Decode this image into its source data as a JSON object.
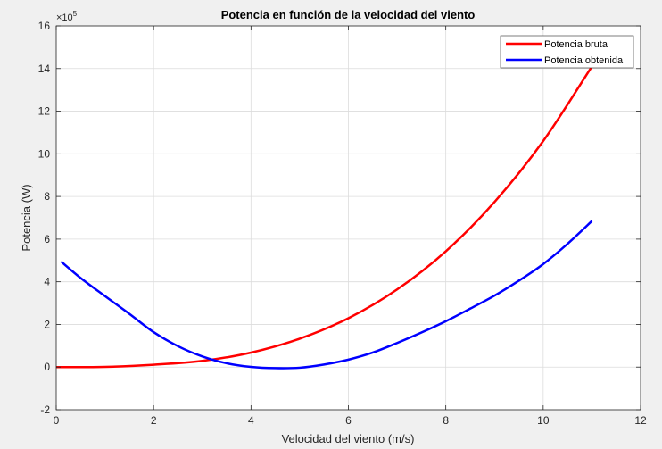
{
  "chart_data": {
    "type": "line",
    "title": "Potencia en función de la velocidad del viento",
    "xlabel": "Velocidad del viento (m/s)",
    "ylabel": "Potencia (W)",
    "y_exponent_label": "×10",
    "y_exponent_power": "5",
    "xlim": [
      0,
      12
    ],
    "ylim": [
      -2,
      16
    ],
    "x_ticks": [
      "0",
      "2",
      "4",
      "6",
      "8",
      "10",
      "12"
    ],
    "y_ticks": [
      "-2",
      "0",
      "2",
      "4",
      "6",
      "8",
      "10",
      "12",
      "14",
      "16"
    ],
    "grid": true,
    "legend_position": "top-right",
    "series": [
      {
        "name": "Potencia bruta",
        "color": "#ff0000",
        "x": [
          0,
          1,
          2,
          3,
          4,
          5,
          6,
          7,
          8,
          9,
          10,
          11
        ],
        "y": [
          0,
          0.01,
          0.11,
          0.29,
          0.68,
          1.33,
          2.29,
          3.64,
          5.43,
          7.74,
          10.6,
          14.1
        ]
      },
      {
        "name": "Potencia obtenida",
        "color": "#0000ff",
        "x": [
          0.1,
          0.5,
          1,
          1.5,
          2,
          2.5,
          3,
          3.5,
          4,
          4.5,
          5,
          5.5,
          6,
          6.5,
          7,
          7.5,
          8,
          8.5,
          9,
          9.5,
          10,
          10.5,
          11
        ],
        "y": [
          4.95,
          4.18,
          3.33,
          2.5,
          1.64,
          0.98,
          0.5,
          0.18,
          0.01,
          -0.05,
          -0.03,
          0.12,
          0.35,
          0.68,
          1.13,
          1.62,
          2.15,
          2.74,
          3.35,
          4.05,
          4.83,
          5.78,
          6.85
        ]
      }
    ]
  }
}
